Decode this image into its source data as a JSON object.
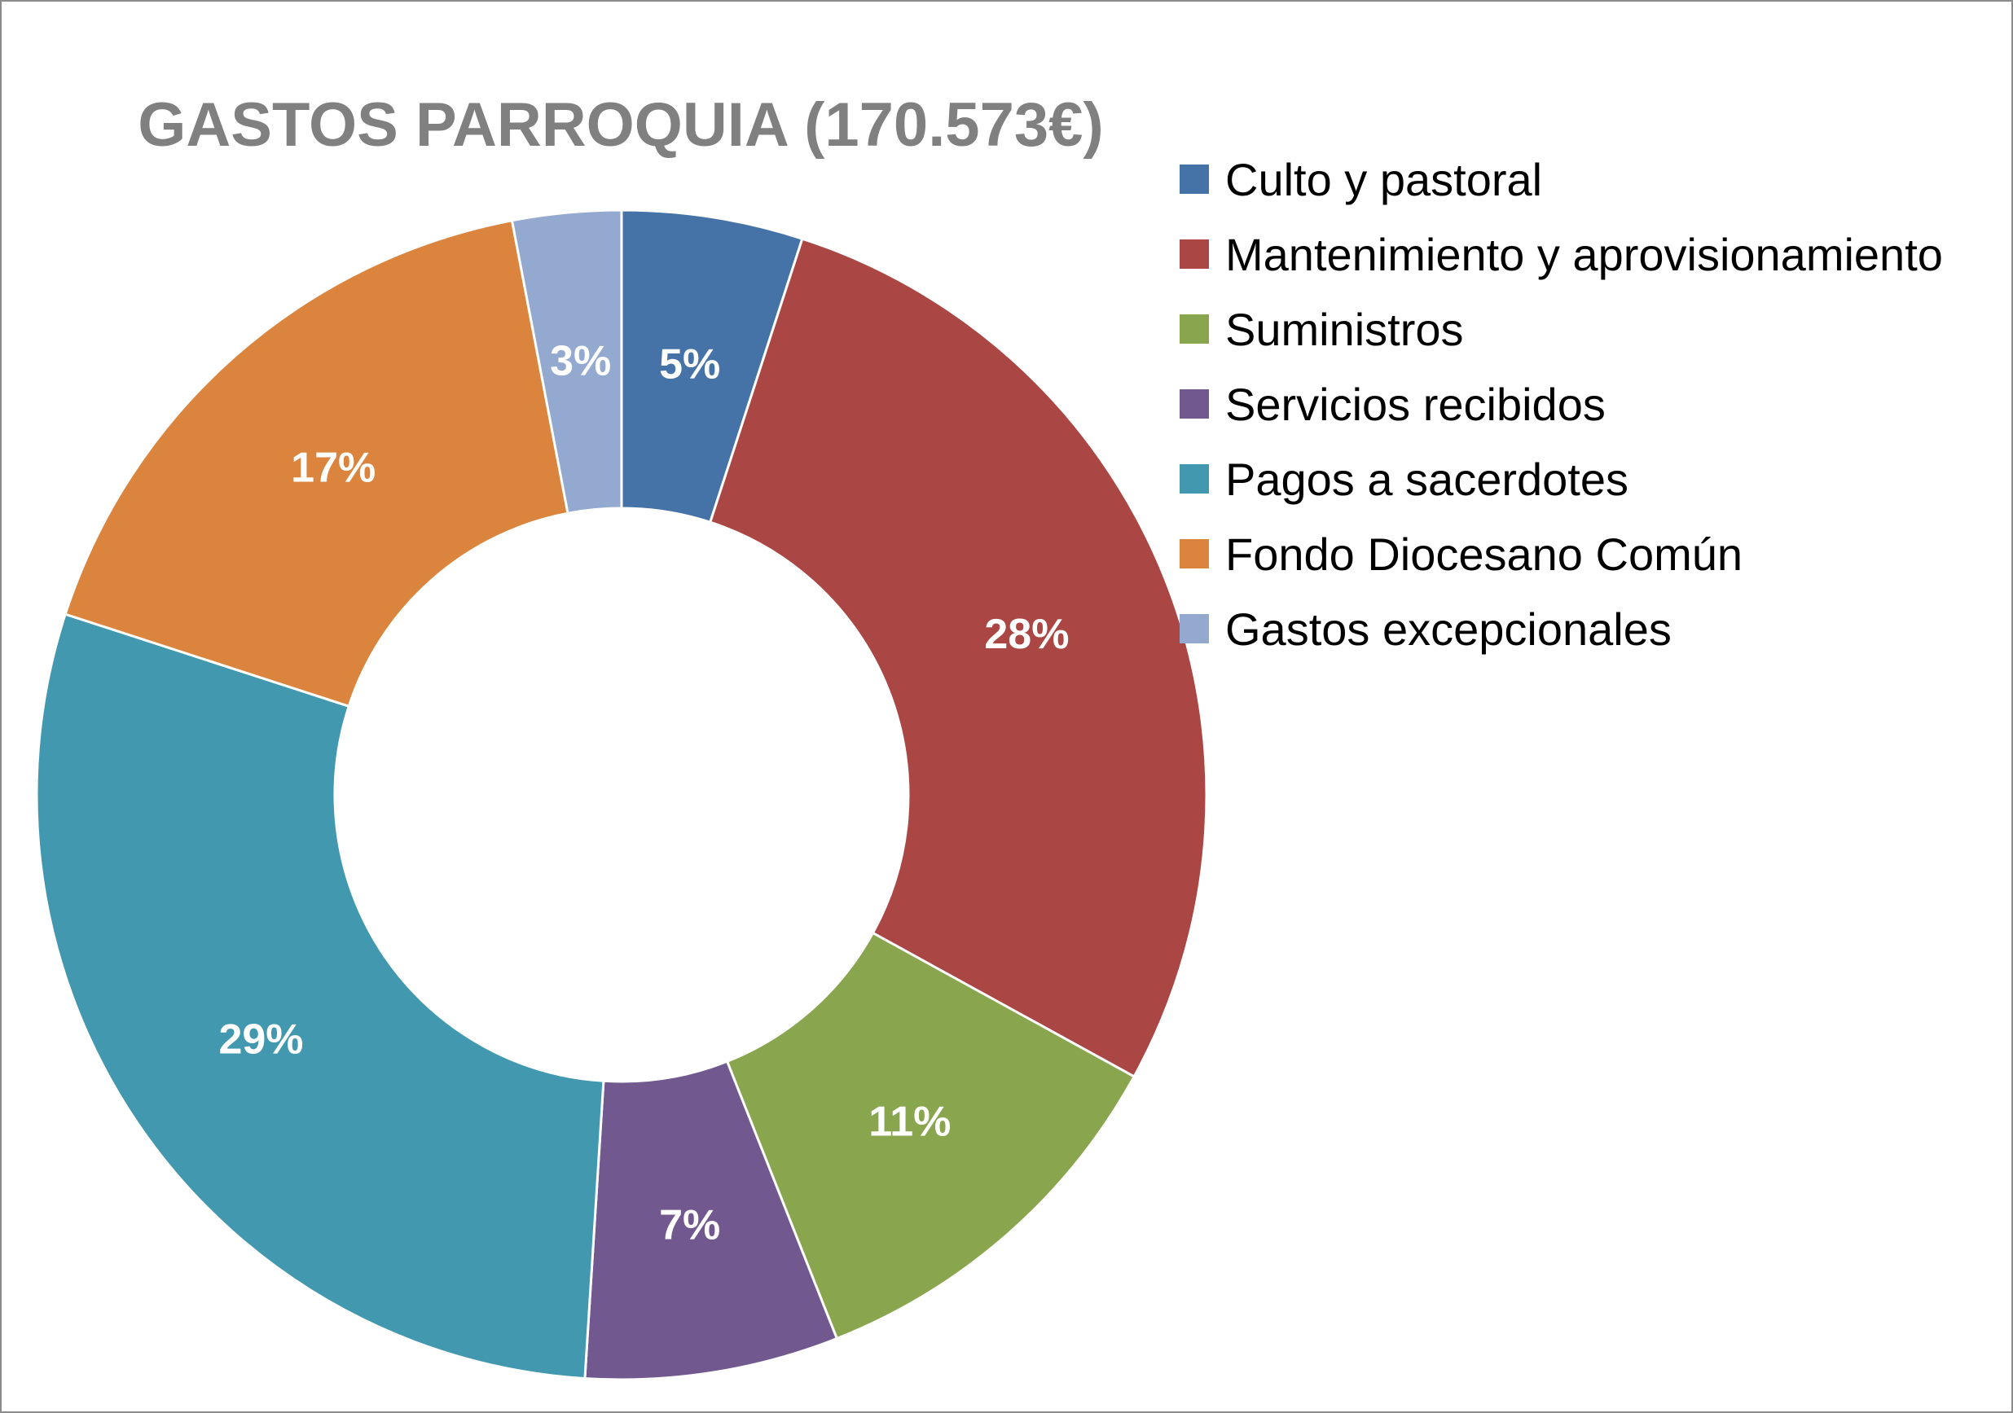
{
  "chart_data": {
    "type": "pie",
    "donut": true,
    "title": "GASTOS PARROQUIA (170.573€)",
    "legend_position": "right",
    "slices": [
      {
        "name": "Culto y pastoral",
        "value": 5,
        "label": "5%",
        "color": "#4572a7"
      },
      {
        "name": "Mantenimiento y aprovisionamiento",
        "value": 28,
        "label": "28%",
        "color": "#aa4643"
      },
      {
        "name": "Suministros",
        "value": 11,
        "label": "11%",
        "color": "#89a54e"
      },
      {
        "name": "Servicios recibidos",
        "value": 7,
        "label": "7%",
        "color": "#71588f"
      },
      {
        "name": "Pagos a sacerdotes",
        "value": 29,
        "label": "29%",
        "color": "#4198af"
      },
      {
        "name": "Fondo Diocesano Común",
        "value": 17,
        "label": "17%",
        "color": "#db843d"
      },
      {
        "name": "Gastos excepcionales",
        "value": 3,
        "label": "3%",
        "color": "#93a9cf"
      }
    ]
  }
}
